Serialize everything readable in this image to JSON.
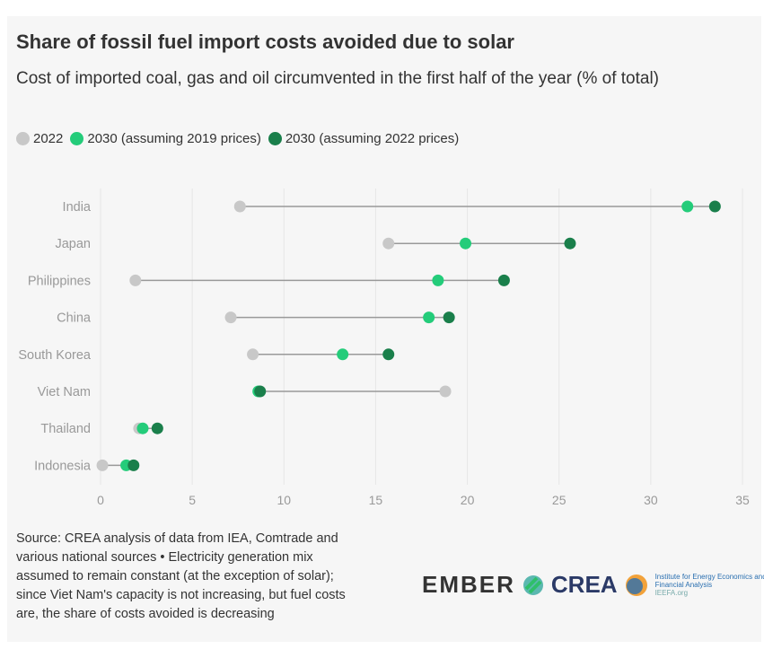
{
  "title": "Share of fossil fuel import costs avoided due to solar",
  "subtitle": "Cost of imported coal, gas and oil circumvented in the first half of the year (% of total)",
  "source": "Source: CREA analysis of data from IEA, Comtrade and various national sources • Electricity generation mix assumed to remain constant (at the exception of solar); since Viet Nam's capacity is not increasing, but fuel costs are, the share of costs avoided is decreasing",
  "logos": {
    "ember": "EMBER",
    "crea": "CREA",
    "ieefa": "Institute for Energy Economics and Financial Analysis",
    "ieefa_url": "IEEFA.org"
  },
  "chart_data": {
    "type": "dot-range",
    "categories": [
      "India",
      "Japan",
      "Philippines",
      "China",
      "South Korea",
      "Viet Nam",
      "Thailand",
      "Indonesia"
    ],
    "series": [
      {
        "name": "2022",
        "color": "#c8c8c8",
        "values": [
          7.6,
          15.7,
          1.9,
          7.1,
          8.3,
          18.8,
          2.1,
          0.1
        ]
      },
      {
        "name": "2030 (assuming 2019 prices)",
        "color": "#24cc7a",
        "values": [
          32.0,
          19.9,
          18.4,
          17.9,
          13.2,
          8.6,
          2.3,
          1.4
        ]
      },
      {
        "name": "2030 (assuming 2022 prices)",
        "color": "#1a7f4b",
        "values": [
          33.5,
          25.6,
          22.0,
          19.0,
          15.7,
          8.7,
          3.1,
          1.8
        ]
      }
    ],
    "xlim": [
      0,
      35
    ],
    "xticks": [
      0,
      5,
      10,
      15,
      20,
      25,
      30,
      35
    ],
    "grid": true,
    "legend": "top-left"
  }
}
